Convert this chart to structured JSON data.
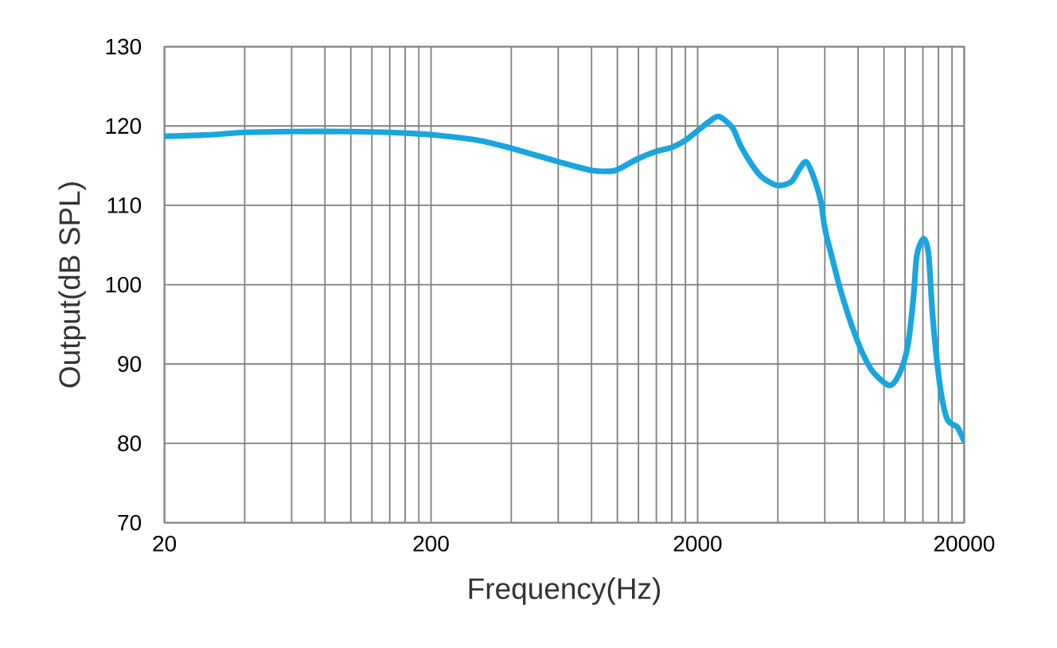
{
  "chart_data": {
    "type": "line",
    "xlabel": "Frequency(Hz)",
    "ylabel": "Output(dB SPL)",
    "log": "x",
    "x": [
      20,
      30,
      40,
      60,
      100,
      140,
      200,
      300,
      400,
      600,
      800,
      930,
      1000,
      1200,
      1400,
      1600,
      1800,
      2000,
      2200,
      2400,
      2700,
      2900,
      3200,
      3500,
      4000,
      4500,
      4800,
      5100,
      5400,
      5800,
      6000,
      6500,
      6900,
      7600,
      8300,
      9100,
      10500,
      11500,
      12300,
      12900,
      13300,
      14100,
      14700,
      15200,
      15800,
      16500,
      17300,
      18300,
      18900,
      20000
    ],
    "series": [
      {
        "color": "#19a6de",
        "values": [
          118.7,
          118.9,
          119.2,
          119.3,
          119.3,
          119.2,
          118.9,
          118.2,
          117.2,
          115.5,
          114.4,
          114.3,
          114.5,
          115.9,
          116.8,
          117.3,
          118.2,
          119.4,
          120.5,
          121.2,
          119.8,
          117.5,
          115.1,
          113.5,
          112.5,
          113.0,
          114.5,
          115.5,
          113.9,
          110.5,
          107.1,
          102.4,
          99.1,
          94.7,
          91.4,
          89.0,
          87.3,
          89.0,
          92.4,
          98.4,
          103.8,
          105.8,
          103.8,
          96.4,
          90.4,
          85.7,
          83.0,
          82.3,
          82.0,
          80.3
        ]
      }
    ],
    "xlim": [
      20,
      20000
    ],
    "ylim": [
      70,
      130
    ],
    "xticks": [
      20,
      {
        "value": 40,
        "label": null
      },
      {
        "value": 60,
        "label": null
      },
      {
        "value": 80,
        "label": null
      },
      {
        "value": 100,
        "label": null
      },
      {
        "value": 120,
        "label": null
      },
      {
        "value": 140,
        "label": null
      },
      {
        "value": 160,
        "label": null
      },
      {
        "value": 180,
        "label": null
      },
      200,
      {
        "value": 400,
        "label": null
      },
      {
        "value": 600,
        "label": null
      },
      {
        "value": 800,
        "label": null
      },
      {
        "value": 1000,
        "label": null
      },
      {
        "value": 1200,
        "label": null
      },
      {
        "value": 1400,
        "label": null
      },
      {
        "value": 1600,
        "label": null
      },
      {
        "value": 1800,
        "label": null
      },
      2000,
      {
        "value": 4000,
        "label": null
      },
      {
        "value": 6000,
        "label": null
      },
      {
        "value": 8000,
        "label": null
      },
      {
        "value": 10000,
        "label": null
      },
      {
        "value": 12000,
        "label": null
      },
      {
        "value": 14000,
        "label": null
      },
      {
        "value": 16000,
        "label": null
      },
      {
        "value": 18000,
        "label": null
      },
      20000
    ],
    "yticks": [
      70,
      80,
      90,
      100,
      110,
      120,
      130
    ],
    "grid": true,
    "marker": "none",
    "line_style": "solid"
  }
}
